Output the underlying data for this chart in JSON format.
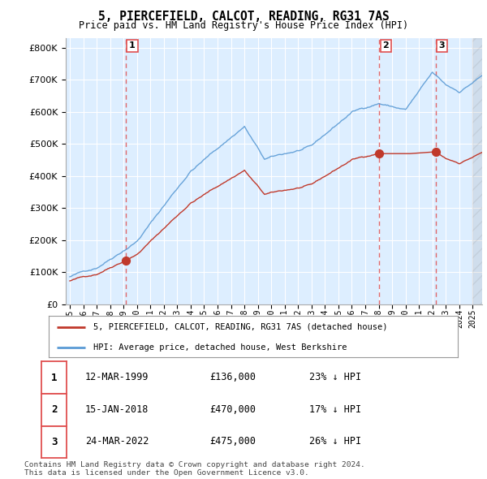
{
  "title": "5, PIERCEFIELD, CALCOT, READING, RG31 7AS",
  "subtitle": "Price paid vs. HM Land Registry's House Price Index (HPI)",
  "legend_label_red": "5, PIERCEFIELD, CALCOT, READING, RG31 7AS (detached house)",
  "legend_label_blue": "HPI: Average price, detached house, West Berkshire",
  "footer": "Contains HM Land Registry data © Crown copyright and database right 2024.\nThis data is licensed under the Open Government Licence v3.0.",
  "transactions": [
    {
      "num": 1,
      "date": "12-MAR-1999",
      "price": "£136,000",
      "hpi": "23% ↓ HPI",
      "year": 1999.17,
      "value": 136000
    },
    {
      "num": 2,
      "date": "15-JAN-2018",
      "price": "£470,000",
      "hpi": "17% ↓ HPI",
      "year": 2018.04,
      "value": 470000
    },
    {
      "num": 3,
      "date": "24-MAR-2022",
      "price": "£475,000",
      "hpi": "26% ↓ HPI",
      "year": 2022.23,
      "value": 475000
    }
  ],
  "hpi_color": "#5b9bd5",
  "price_color": "#c0392b",
  "vline_color": "#e05050",
  "background_color": "#ffffff",
  "chart_bg_color": "#ddeeff",
  "grid_color": "#ffffff",
  "ylim": [
    0,
    830000
  ],
  "yticks": [
    0,
    100000,
    200000,
    300000,
    400000,
    500000,
    600000,
    700000,
    800000
  ],
  "xlim_start": 1994.7,
  "xlim_end": 2025.7
}
